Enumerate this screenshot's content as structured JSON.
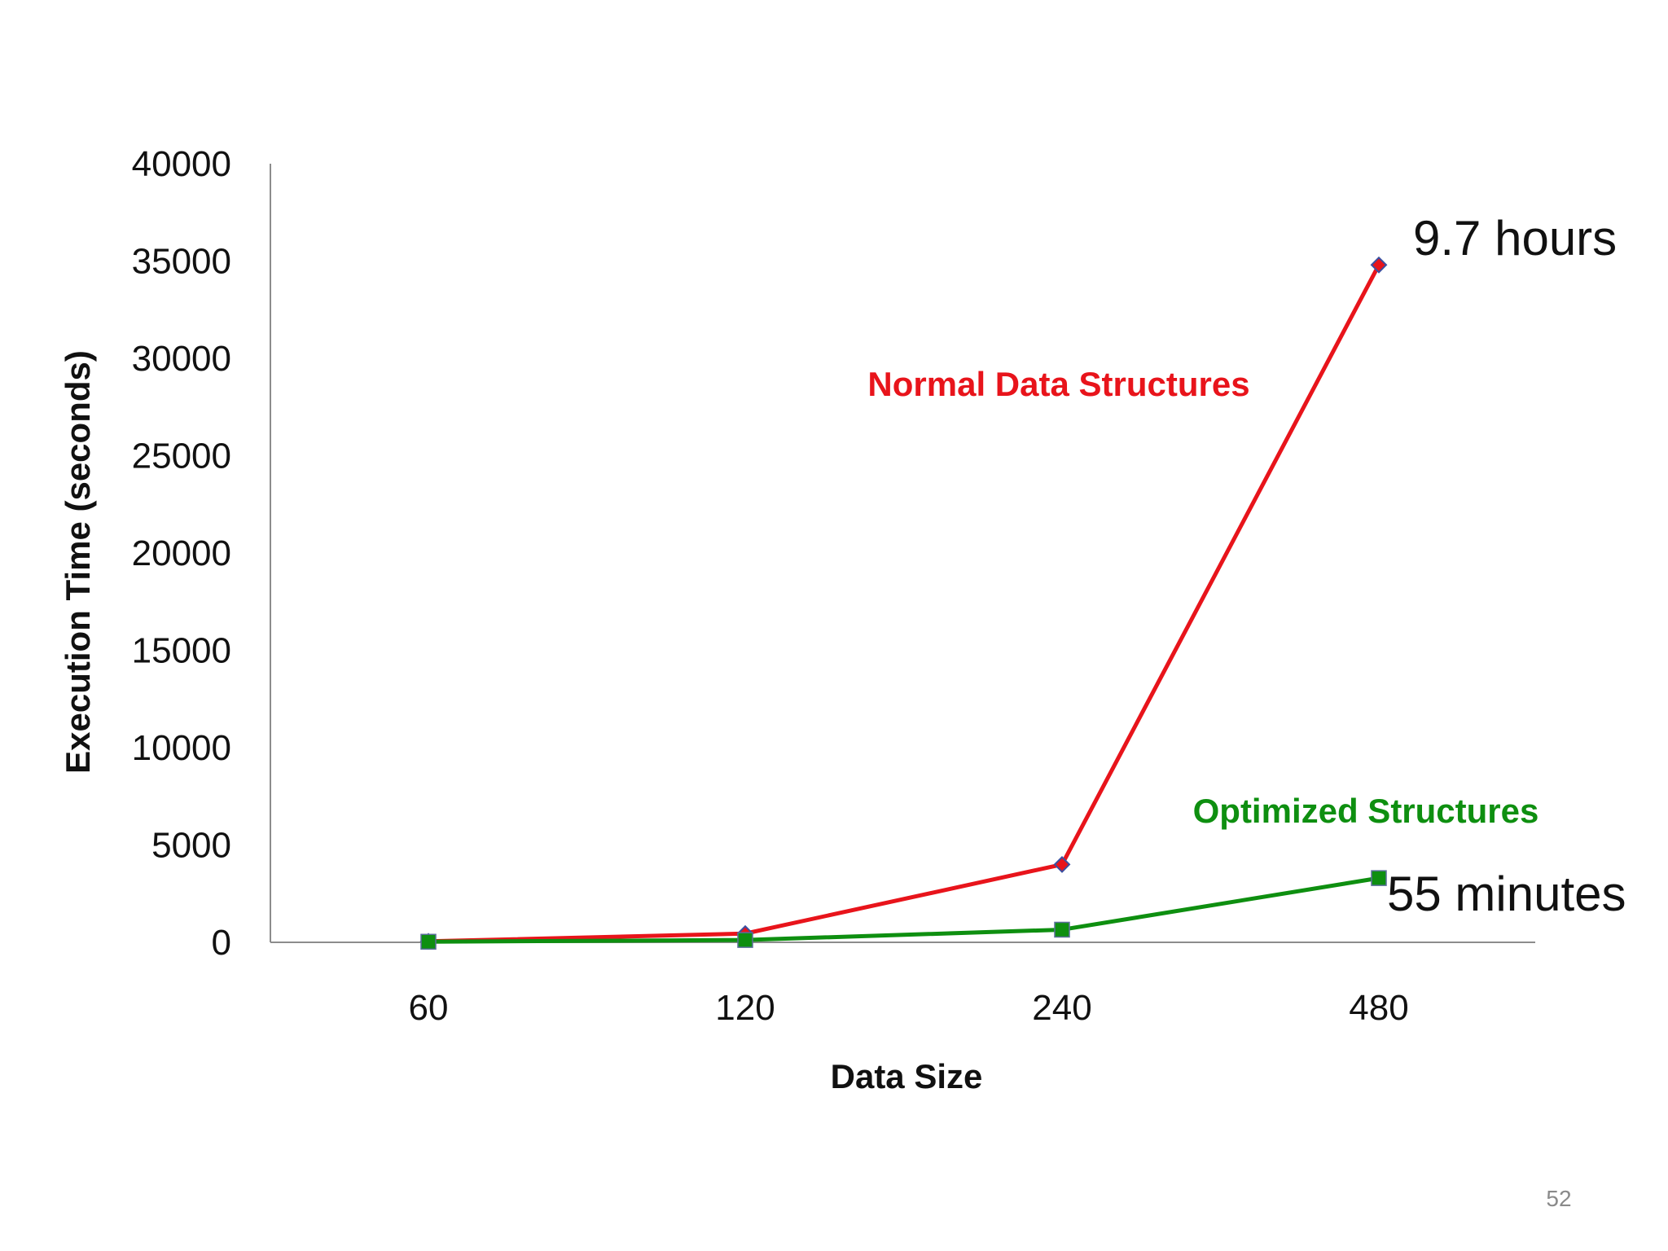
{
  "slide": {
    "page_number": "52"
  },
  "chart_data": {
    "type": "line",
    "categories": [
      "60",
      "120",
      "240",
      "480"
    ],
    "xlabel": "Data Size",
    "ylabel": "Execution Time (seconds)",
    "ylim": [
      0,
      40000
    ],
    "yticks": [
      "0",
      "5000",
      "10000",
      "15000",
      "20000",
      "25000",
      "30000",
      "35000",
      "40000"
    ],
    "grid": false,
    "series": [
      {
        "name": "Normal Data Structures",
        "color": "#e8141b",
        "marker": "diamond",
        "marker_color": "#3b4fa0",
        "values": [
          50,
          450,
          4000,
          34800
        ]
      },
      {
        "name": "Optimized Structures",
        "color": "#0e8f10",
        "marker": "square",
        "marker_color": "#0e8f10",
        "values": [
          30,
          120,
          650,
          3300
        ]
      }
    ],
    "annotations": [
      {
        "text": "9.7 hours",
        "series": 0,
        "point": 3
      },
      {
        "text": "55 minutes",
        "series": 1,
        "point": 3
      }
    ]
  }
}
